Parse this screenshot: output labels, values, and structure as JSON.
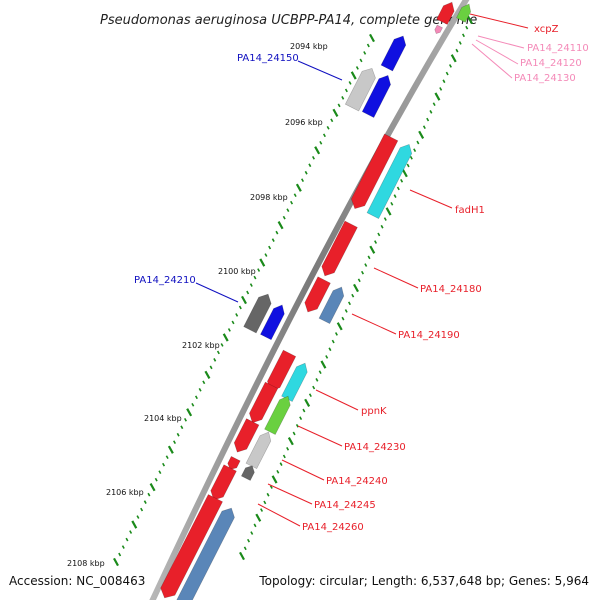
{
  "title": "Pseudomonas aeruginosa UCBPP-PA14, complete genome",
  "accession": "Accession: NC_008463",
  "topology": "Topology: circular; Length: 6,537,648 bp; Genes: 5,964",
  "ticks": [
    {
      "label": "2094 kbp"
    },
    {
      "label": "2096 kbp"
    },
    {
      "label": "2098 kbp"
    },
    {
      "label": "2100 kbp"
    },
    {
      "label": "2102 kbp"
    },
    {
      "label": "2104 kbp"
    },
    {
      "label": "2106 kbp"
    },
    {
      "label": "2108 kbp"
    }
  ],
  "gene_labels": [
    {
      "text": "xcpZ",
      "color": "#e8202a"
    },
    {
      "text": "PA14_24110",
      "color": "#f48ab8"
    },
    {
      "text": "PA14_24120",
      "color": "#f48ab8"
    },
    {
      "text": "PA14_24130",
      "color": "#f48ab8"
    },
    {
      "text": "PA14_24150",
      "color": "#1010c0"
    },
    {
      "text": "fadH1",
      "color": "#e8202a"
    },
    {
      "text": "PA14_24210",
      "color": "#1010c0"
    },
    {
      "text": "PA14_24180",
      "color": "#e8202a"
    },
    {
      "text": "PA14_24190",
      "color": "#e8202a"
    },
    {
      "text": "ppnK",
      "color": "#e8202a"
    },
    {
      "text": "PA14_24230",
      "color": "#e8202a"
    },
    {
      "text": "PA14_24240",
      "color": "#e8202a"
    },
    {
      "text": "PA14_24245",
      "color": "#e8202a"
    },
    {
      "text": "PA14_24260",
      "color": "#e8202a"
    }
  ],
  "colors": {
    "red": "#e8202a",
    "blue": "#1010e0",
    "cyan": "#2fd8e0",
    "steelblue": "#5a86b8",
    "green": "#6ad040",
    "gray": "#666666",
    "lightgray": "#c8c8c8",
    "pink": "#f48ab8",
    "backbone": "#8a8a8a",
    "tick_green": "#1a8a1a"
  }
}
